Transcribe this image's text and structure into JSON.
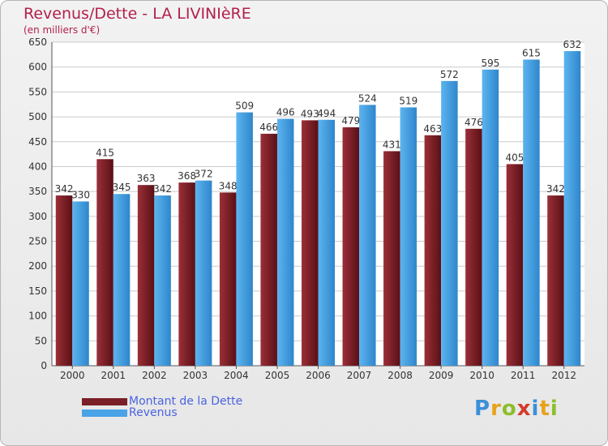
{
  "title": "Revenus/Dette - LA LIVINIèRE",
  "subtitle": "(en milliers d'€)",
  "logo": {
    "letters": [
      "P",
      "r",
      "o",
      "x",
      "i",
      "t",
      "i"
    ],
    "colors": [
      "#3b8fd8",
      "#e8a21a",
      "#8bbf2a",
      "#d43b2b",
      "#3b8fd8",
      "#e8a21a",
      "#8bbf2a"
    ]
  },
  "chart_data": {
    "type": "bar",
    "categories": [
      "2000",
      "2001",
      "2002",
      "2003",
      "2004",
      "2005",
      "2006",
      "2007",
      "2008",
      "2009",
      "2010",
      "2011",
      "2012"
    ],
    "series": [
      {
        "name": "Montant de la Dette",
        "color": "#7a1f27",
        "values": [
          342,
          415,
          363,
          368,
          348,
          466,
          493,
          479,
          431,
          463,
          476,
          405,
          342
        ]
      },
      {
        "name": "Revenus",
        "color": "#4aa3e6",
        "values": [
          330,
          345,
          342,
          372,
          509,
          496,
          494,
          524,
          519,
          572,
          595,
          615,
          632
        ]
      }
    ],
    "ylim": [
      0,
      650
    ],
    "yticks": [
      0,
      50,
      100,
      150,
      200,
      250,
      300,
      350,
      400,
      450,
      500,
      550,
      600,
      650
    ],
    "grid": true,
    "legend_position": "bottom-left"
  }
}
